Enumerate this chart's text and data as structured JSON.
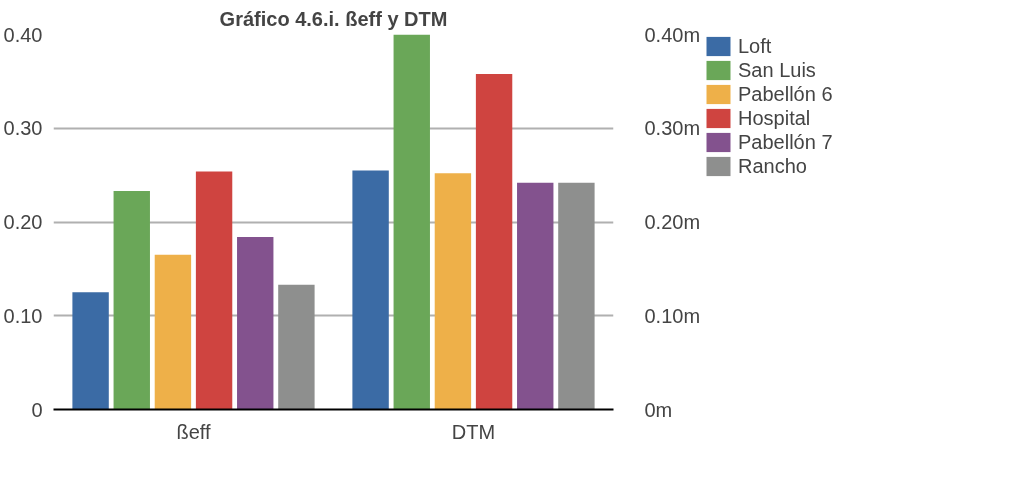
{
  "chart_data": {
    "type": "bar",
    "title": "Gráfico 4.6.i. ßeff y DTM",
    "categories": [
      "ßeff",
      "DTM"
    ],
    "series": [
      {
        "name": "Loft",
        "color": "#3b6ba5",
        "values": [
          0.125,
          0.255
        ]
      },
      {
        "name": "San Luis",
        "color": "#6aa758",
        "values": [
          0.233,
          0.4
        ]
      },
      {
        "name": "Pabellón 6",
        "color": "#eeb049",
        "values": [
          0.165,
          0.252
        ]
      },
      {
        "name": "Hospital",
        "color": "#cf4440",
        "values": [
          0.254,
          0.358
        ]
      },
      {
        "name": "Pabellón 7",
        "color": "#83528e",
        "values": [
          0.184,
          0.242
        ]
      },
      {
        "name": "Rancho",
        "color": "#8e8f8e",
        "values": [
          0.133,
          0.242
        ]
      }
    ],
    "ylim": [
      0,
      0.4
    ],
    "yticks": [
      {
        "value": 0,
        "label": "0"
      },
      {
        "value": 0.1,
        "label": "0.10"
      },
      {
        "value": 0.2,
        "label": "0.20"
      },
      {
        "value": 0.3,
        "label": "0.30"
      },
      {
        "value": 0.4,
        "label": "0.40"
      }
    ],
    "y2lim": [
      0,
      0.4
    ],
    "y2ticks": [
      {
        "value": 0,
        "label": "0m"
      },
      {
        "value": 0.1,
        "label": "0.10m"
      },
      {
        "value": 0.2,
        "label": "0.20m"
      },
      {
        "value": 0.3,
        "label": "0.30m"
      },
      {
        "value": 0.4,
        "label": "0.40m"
      }
    ],
    "grid": "y",
    "legend": "top right"
  }
}
